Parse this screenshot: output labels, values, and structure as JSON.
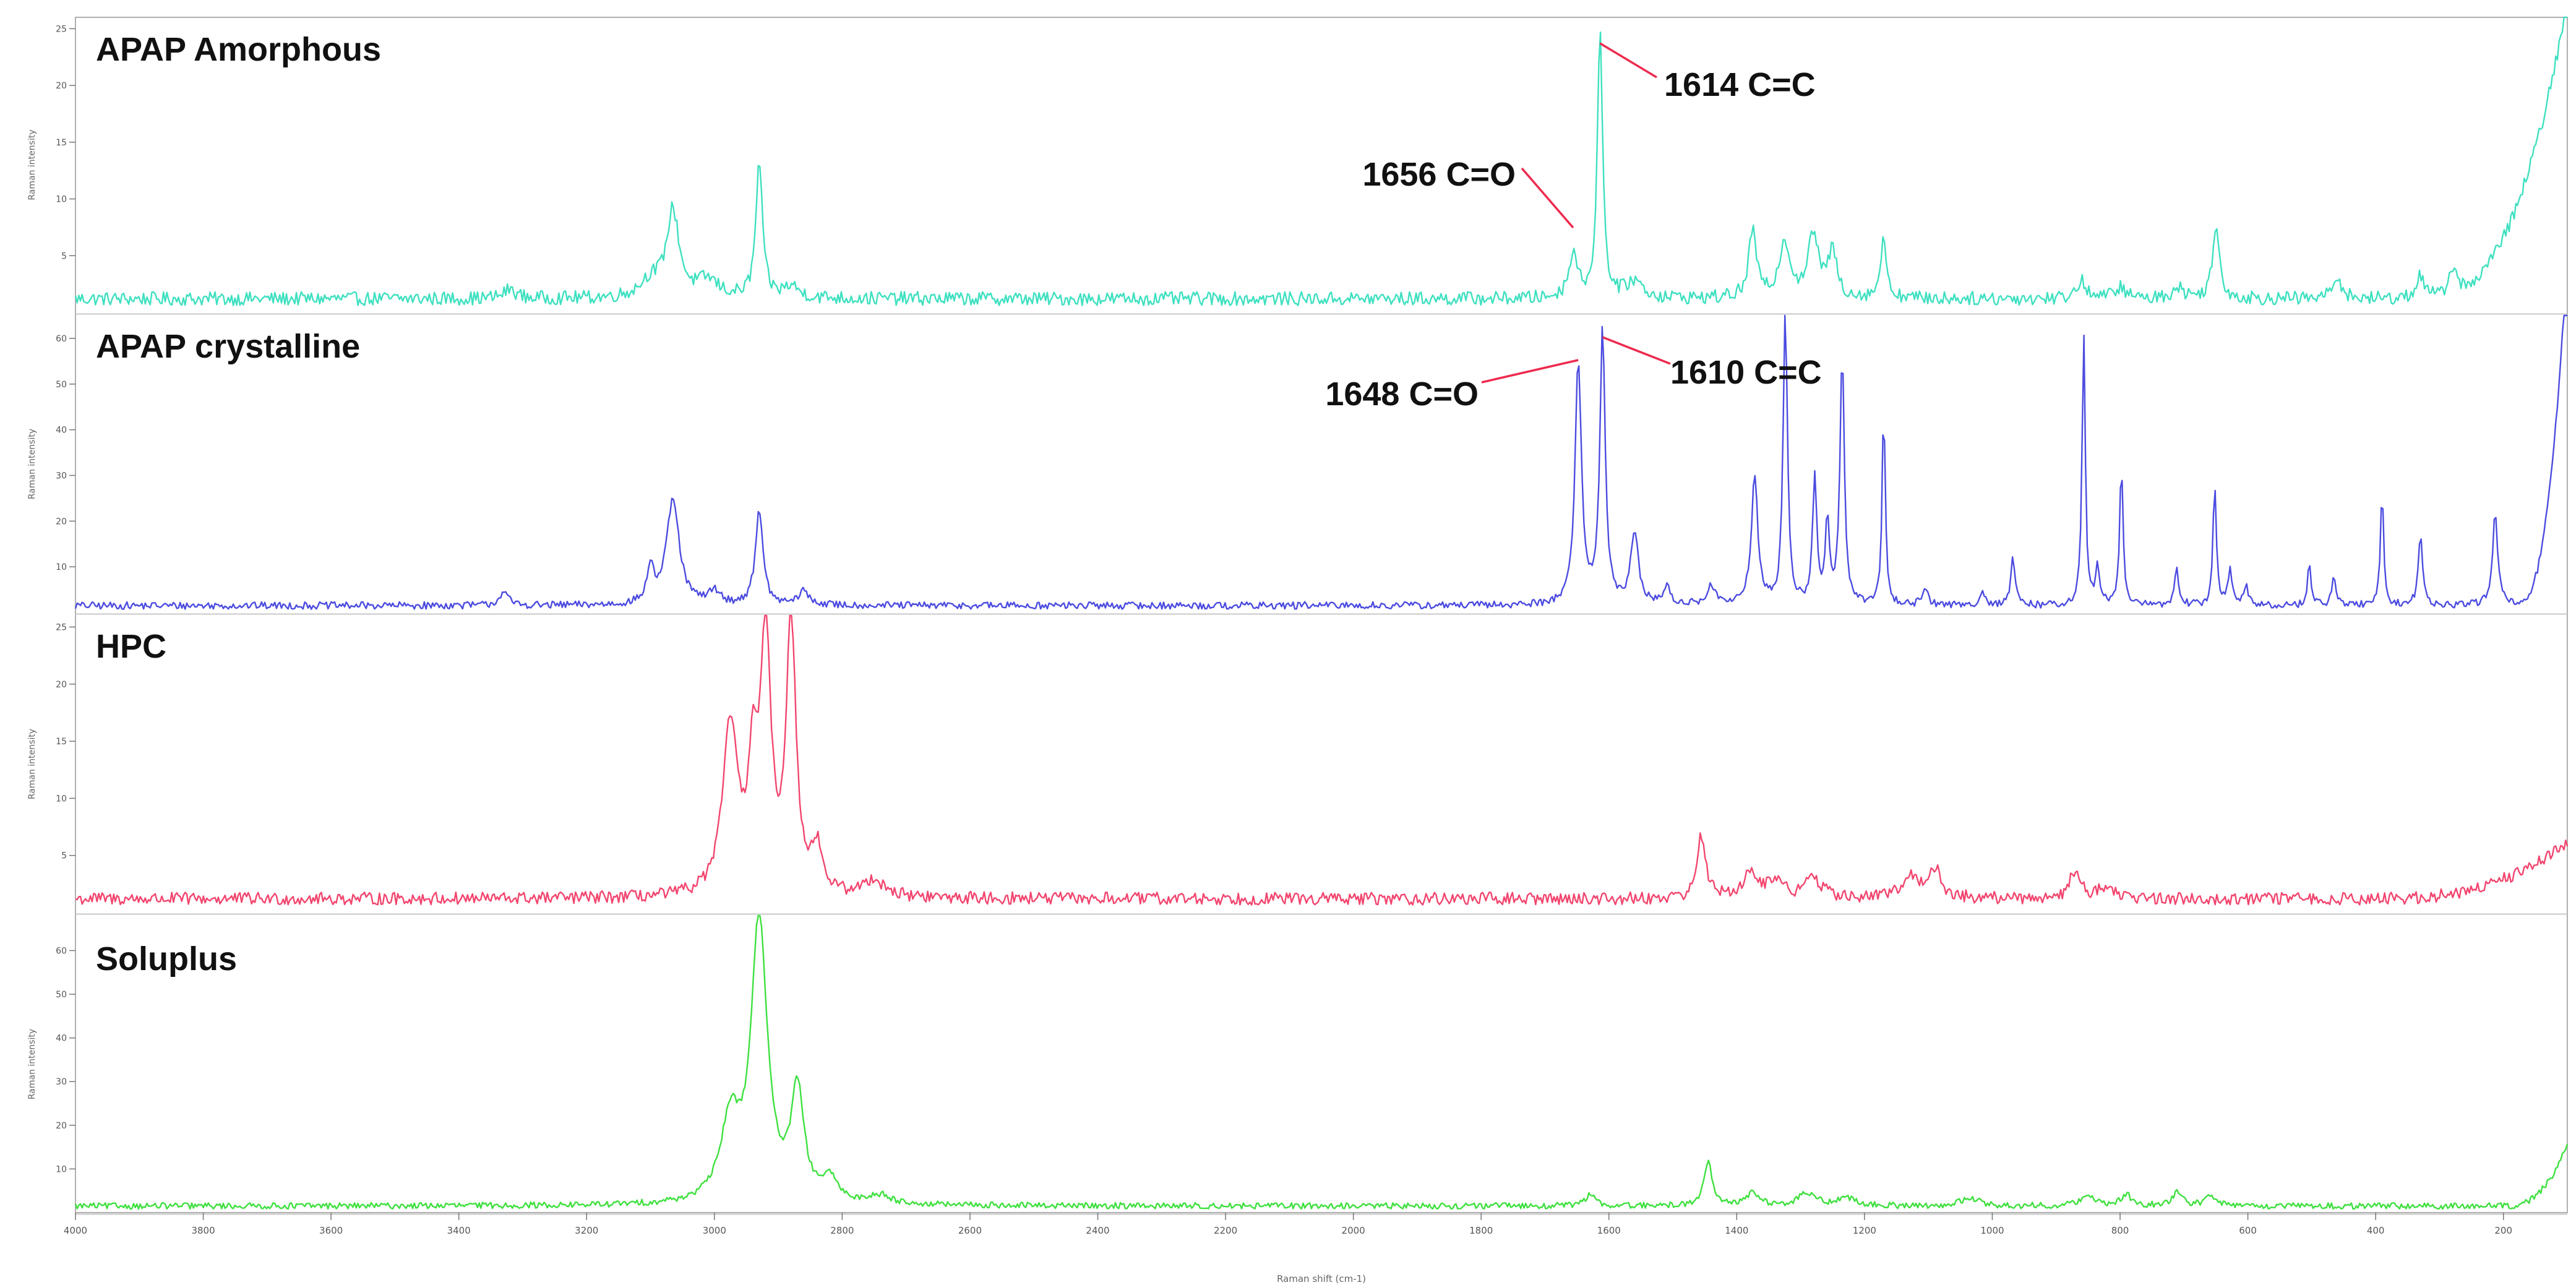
{
  "chart_data": {
    "type": "line",
    "xlabel": "Raman shift (cm-1)",
    "xlim": [
      4000,
      100
    ],
    "x_ticks": [
      "4000",
      "3800",
      "3600",
      "3400",
      "3200",
      "3000",
      "2800",
      "2600",
      "2400",
      "2200",
      "2000",
      "1800",
      "1600",
      "1400",
      "1200",
      "1000",
      "800",
      "600",
      "400",
      "200"
    ],
    "panels": [
      {
        "key": "amorphous",
        "title": "APAP Amorphous",
        "ylabel": "Raman intensity",
        "color": "#3ee0c0",
        "ylim": [
          0,
          26
        ],
        "y_ticks": [
          "5",
          "10",
          "15",
          "20",
          "25"
        ],
        "baseline": 1.2,
        "noise": 0.6,
        "peaks": [
          [
            3320,
            0.8,
            12
          ],
          [
            3100,
            1.5,
            20
          ],
          [
            3065,
            7.5,
            12
          ],
          [
            3010,
            1.5,
            20
          ],
          [
            2930,
            12.0,
            6
          ],
          [
            2880,
            1.0,
            15
          ],
          [
            1656,
            4.0,
            8
          ],
          [
            1614,
            23.5,
            5
          ],
          [
            1560,
            1.5,
            15
          ],
          [
            1375,
            6.0,
            7
          ],
          [
            1325,
            5.0,
            10
          ],
          [
            1280,
            5.5,
            10
          ],
          [
            1250,
            4.0,
            8
          ],
          [
            1170,
            5.0,
            6
          ],
          [
            860,
            1.5,
            10
          ],
          [
            800,
            1.0,
            10
          ],
          [
            710,
            1.0,
            10
          ],
          [
            650,
            6.0,
            7
          ],
          [
            460,
            2.0,
            8
          ],
          [
            330,
            2.0,
            8
          ],
          [
            280,
            2.5,
            8
          ]
        ],
        "rise": {
          "start": 320,
          "end": 100,
          "value": 26
        },
        "annotations": [
          {
            "text": "1614 C=C",
            "x": 1614
          },
          {
            "text": "1656 C=O",
            "x": 1656
          }
        ]
      },
      {
        "key": "crystalline",
        "title": "APAP crystalline",
        "ylabel": "Raman intensity",
        "color": "#4b4be0",
        "ylim": [
          0,
          65
        ],
        "y_ticks": [
          "10",
          "20",
          "30",
          "40",
          "50",
          "60"
        ],
        "baseline": 1.5,
        "noise": 0.8,
        "peaks": [
          [
            3330,
            3.0,
            8
          ],
          [
            3100,
            8.0,
            6
          ],
          [
            3065,
            23.0,
            12
          ],
          [
            3000,
            3.0,
            10
          ],
          [
            2930,
            21.0,
            7
          ],
          [
            2860,
            3.0,
            10
          ],
          [
            1648,
            53.0,
            6
          ],
          [
            1610,
            60.0,
            5
          ],
          [
            1560,
            16.0,
            7
          ],
          [
            1510,
            4.0,
            6
          ],
          [
            1440,
            4.0,
            8
          ],
          [
            1372,
            28.0,
            6
          ],
          [
            1324,
            64.0,
            4
          ],
          [
            1278,
            27.0,
            4
          ],
          [
            1258,
            18.0,
            4
          ],
          [
            1235,
            55.0,
            4
          ],
          [
            1170,
            43.0,
            3
          ],
          [
            1105,
            4.0,
            5
          ],
          [
            1015,
            3.0,
            5
          ],
          [
            968,
            10.0,
            4
          ],
          [
            857,
            59.0,
            3
          ],
          [
            835,
            8.0,
            4
          ],
          [
            798,
            32.0,
            3
          ],
          [
            712,
            8.0,
            4
          ],
          [
            652,
            27.0,
            3
          ],
          [
            628,
            8.0,
            4
          ],
          [
            603,
            4.0,
            4
          ],
          [
            504,
            10.0,
            3
          ],
          [
            465,
            6.0,
            4
          ],
          [
            390,
            25.0,
            3
          ],
          [
            330,
            15.0,
            4
          ],
          [
            213,
            20.0,
            5
          ]
        ],
        "rise": {
          "start": 180,
          "end": 105,
          "value": 65
        },
        "annotations": [
          {
            "text": "1648 C=O",
            "x": 1648
          },
          {
            "text": "1610 C=C",
            "x": 1610
          }
        ]
      },
      {
        "key": "hpc",
        "title": "HPC",
        "ylabel": "Raman intensity",
        "color": "#f2456e",
        "ylim": [
          0,
          26
        ],
        "y_ticks": [
          "5",
          "10",
          "15",
          "20",
          "25"
        ],
        "baseline": 1.2,
        "noise": 0.55,
        "peaks": [
          [
            2975,
            15.0,
            14
          ],
          [
            2940,
            10.0,
            8
          ],
          [
            2920,
            22.0,
            10
          ],
          [
            2880,
            24.0,
            9
          ],
          [
            2840,
            4.0,
            10
          ],
          [
            2750,
            1.5,
            20
          ],
          [
            1455,
            5.5,
            8
          ],
          [
            1380,
            2.0,
            15
          ],
          [
            1340,
            1.5,
            15
          ],
          [
            1280,
            1.8,
            15
          ],
          [
            1130,
            2.0,
            15
          ],
          [
            1090,
            2.5,
            12
          ],
          [
            870,
            2.5,
            10
          ],
          [
            820,
            1.0,
            15
          ]
        ],
        "rise": {
          "start": 400,
          "end": 100,
          "value": 5
        },
        "annotations": []
      },
      {
        "key": "soluplus",
        "title": "Soluplus",
        "ylabel": "Raman intensity",
        "color": "#3ee03e",
        "ylim": [
          0,
          68
        ],
        "y_ticks": [
          "10",
          "20",
          "30",
          "40",
          "50",
          "60"
        ],
        "baseline": 1.5,
        "noise": 0.7,
        "peaks": [
          [
            2975,
            18.0,
            18
          ],
          [
            2930,
            65.0,
            15
          ],
          [
            2870,
            25.0,
            12
          ],
          [
            2820,
            5.0,
            15
          ],
          [
            2740,
            2.0,
            20
          ],
          [
            1630,
            2.5,
            10
          ],
          [
            1445,
            10.0,
            8
          ],
          [
            1375,
            3.0,
            12
          ],
          [
            1290,
            3.0,
            15
          ],
          [
            1230,
            2.0,
            15
          ],
          [
            1035,
            2.0,
            15
          ],
          [
            850,
            2.0,
            15
          ],
          [
            790,
            2.5,
            10
          ],
          [
            710,
            3.0,
            10
          ],
          [
            660,
            2.0,
            10
          ]
        ],
        "rise": {
          "start": 200,
          "end": 100,
          "value": 14
        },
        "annotations": []
      }
    ]
  }
}
